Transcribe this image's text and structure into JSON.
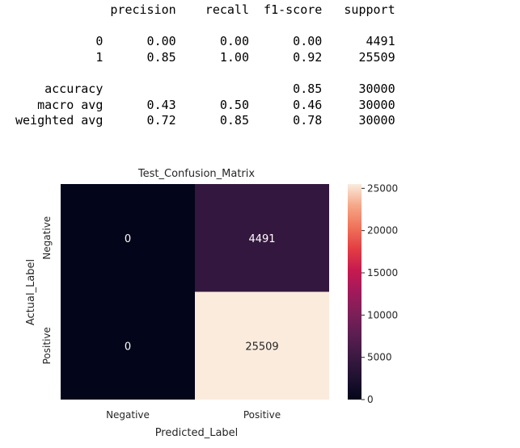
{
  "report": {
    "headers": [
      "precision",
      "recall",
      "f1-score",
      "support"
    ],
    "rows": [
      {
        "label": "0",
        "precision": "0.00",
        "recall": "0.00",
        "f1": "0.00",
        "support": "4491"
      },
      {
        "label": "1",
        "precision": "0.85",
        "recall": "1.00",
        "f1": "0.92",
        "support": "25509"
      },
      {
        "blank": true
      },
      {
        "label": "accuracy",
        "precision": "",
        "recall": "",
        "f1": "0.85",
        "support": "30000"
      },
      {
        "label": "macro avg",
        "precision": "0.43",
        "recall": "0.50",
        "f1": "0.46",
        "support": "30000"
      },
      {
        "label": "weighted avg",
        "precision": "0.72",
        "recall": "0.85",
        "f1": "0.78",
        "support": "30000"
      }
    ]
  },
  "chart_data": {
    "type": "heatmap",
    "title": "Test_Confusion_Matrix",
    "xlabel": "Predicted_Label",
    "ylabel": "Actual_Label",
    "x_categories": [
      "Negative",
      "Positive"
    ],
    "y_categories": [
      "Negative",
      "Positive"
    ],
    "values": [
      [
        0,
        4491
      ],
      [
        0,
        25509
      ]
    ],
    "annotations": [
      [
        "0",
        "4491"
      ],
      [
        "0",
        "25509"
      ]
    ],
    "colorbar": {
      "min": 0,
      "max": 25509,
      "ticks": [
        0,
        5000,
        10000,
        15000,
        20000,
        25000
      ],
      "colormap": "rocket"
    }
  }
}
